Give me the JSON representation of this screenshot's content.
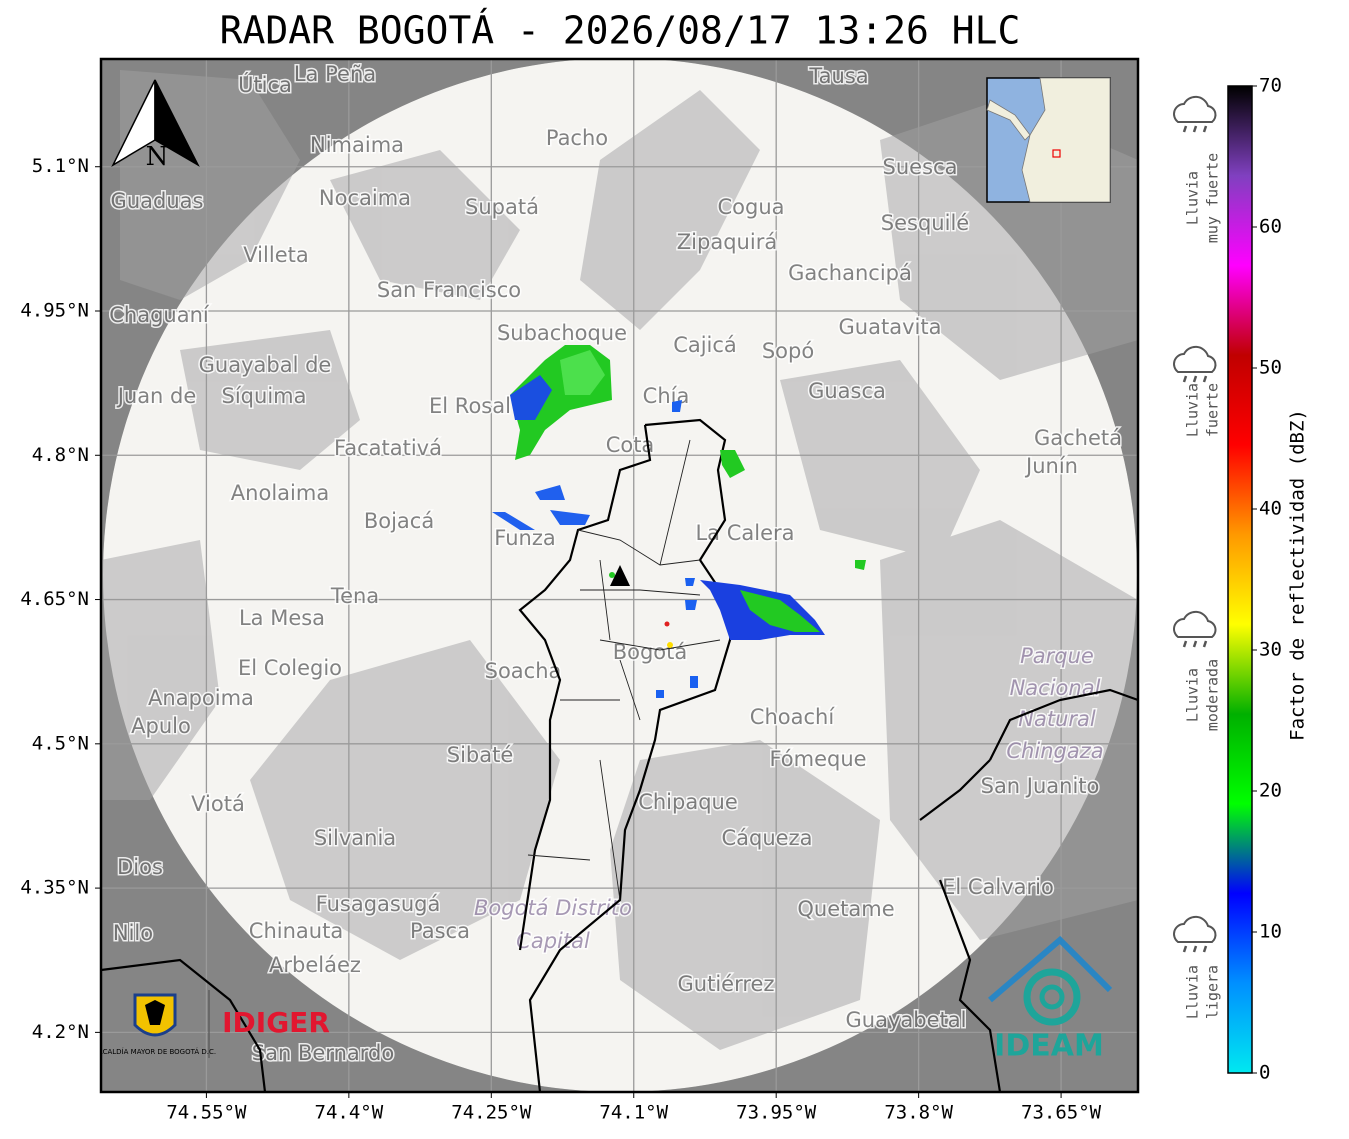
{
  "title": "RADAR BOGOTÁ - 2026/08/17 13:26 HLC",
  "map": {
    "xlim": [
      -74.661,
      -73.569
    ],
    "ylim": [
      4.138,
      5.212
    ],
    "xticks": [
      {
        "value": -74.55,
        "label": "74.55°W"
      },
      {
        "value": -74.4,
        "label": "74.4°W"
      },
      {
        "value": -74.25,
        "label": "74.25°W"
      },
      {
        "value": -74.1,
        "label": "74.1°W"
      },
      {
        "value": -73.95,
        "label": "73.95°W"
      },
      {
        "value": -73.8,
        "label": "73.8°W"
      },
      {
        "value": -73.65,
        "label": "73.65°W"
      }
    ],
    "yticks": [
      {
        "value": 5.1,
        "label": "5.1°N"
      },
      {
        "value": 4.95,
        "label": "4.95°N"
      },
      {
        "value": 4.8,
        "label": "4.8°N"
      },
      {
        "value": 4.65,
        "label": "4.65°N"
      },
      {
        "value": 4.5,
        "label": "4.5°N"
      },
      {
        "value": 4.35,
        "label": "4.35°N"
      },
      {
        "value": 4.2,
        "label": "4.2°N"
      }
    ],
    "grid": true,
    "compass": "N",
    "places": [
      "La Peña",
      "Útica",
      "Tausa",
      "Pacho",
      "Nimaima",
      "Suesca",
      "Guaduas",
      "Nocaima",
      "Supatá",
      "Cogua",
      "Sesquilé",
      "Zipaquirá",
      "Villeta",
      "Gachancipá",
      "San Francisco",
      "Chaguaní",
      "Guatavita",
      "Subachoque",
      "Cajicá",
      "Sopó",
      "Guayabal de",
      "Síquima",
      "Juan de",
      "Guasca",
      "El Rosal",
      "Chía",
      "Facatativá",
      "Gachetá",
      "Junín",
      "Cota",
      "Anolaima",
      "Bojacá",
      "Funza",
      "La Calera",
      "Tena",
      "La Mesa",
      "Bogotá",
      "Parque",
      "Nacional",
      "Natural",
      "Chingaza",
      "El Colegio",
      "Soacha",
      "Anapoima",
      "Apulo",
      "Choachí",
      "Sibaté",
      "Fómeque",
      "San Juanito",
      "Chipaque",
      "Viotá",
      "Silvania",
      "Cáqueza",
      "Dios",
      "El Calvario",
      "Fusagasugá",
      "Bogotá Distrito",
      "Capital",
      "Quetame",
      "Nilo",
      "Chinauta",
      "Pasca",
      "Arbeláez",
      "Gutiérrez",
      "Guayabetal",
      "San Bernardo"
    ]
  },
  "colorbar": {
    "label": "Factor de reflectividad (dBZ)",
    "lim": [
      0,
      70
    ],
    "ticks": [
      0,
      10,
      20,
      30,
      40,
      50,
      60,
      70
    ],
    "colors": [
      "#00e8f0",
      "#0090ff",
      "#0000ff",
      "#00ff00",
      "#00b000",
      "#ffff00",
      "#ff9900",
      "#ff0000",
      "#c00000",
      "#ff00ff",
      "#8040c0",
      "#000000"
    ]
  },
  "intensity": [
    [
      "Lluvia",
      "muy fuerte"
    ],
    [
      "Lluvia",
      "fuerte"
    ],
    [
      "Lluvia",
      "moderada"
    ],
    [
      "Lluvia",
      "ligera"
    ]
  ],
  "logos": {
    "alcaldia": "ALCALDÍA MAYOR DE BOGOTÁ D.C.",
    "idiger": "IDIGER",
    "ideam": "IDEAM"
  }
}
